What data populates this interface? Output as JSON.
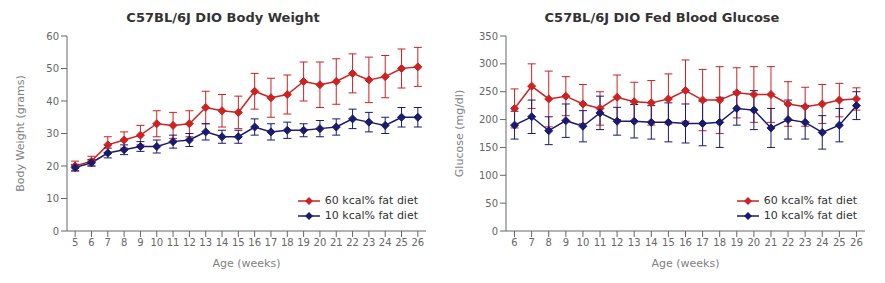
{
  "chart_data": [
    {
      "type": "line",
      "title": "C57BL/6J DIO Body Weight",
      "xlabel": "Age (weeks)",
      "ylabel": "Body Weight (grams)",
      "x": [
        5,
        6,
        7,
        8,
        9,
        10,
        11,
        12,
        13,
        14,
        15,
        16,
        17,
        18,
        19,
        20,
        21,
        22,
        23,
        24,
        25,
        26
      ],
      "series": [
        {
          "name": "60 kcal% fat diet",
          "color": "#cc2222",
          "marker": "diamond",
          "values": [
            20.0,
            21.5,
            26.5,
            28.0,
            29.5,
            33.0,
            32.5,
            33.0,
            38.0,
            37.0,
            36.5,
            43.0,
            41.0,
            42.0,
            46.0,
            45.0,
            46.0,
            48.5,
            46.5,
            47.5,
            50.0,
            50.5
          ],
          "error": [
            1.5,
            1.5,
            2.5,
            2.5,
            3.0,
            4.0,
            4.0,
            4.0,
            5.0,
            5.0,
            5.0,
            5.5,
            6.0,
            6.0,
            6.0,
            7.0,
            7.0,
            6.0,
            7.0,
            6.5,
            6.0,
            6.0
          ]
        },
        {
          "name": "10 kcal% fat diet",
          "color": "#1a1a6e",
          "marker": "diamond",
          "values": [
            19.5,
            21.0,
            24.0,
            25.0,
            26.0,
            26.0,
            27.5,
            28.0,
            30.5,
            29.0,
            29.0,
            32.0,
            30.5,
            31.0,
            31.0,
            31.5,
            32.0,
            34.5,
            33.5,
            32.5,
            35.0,
            35.0
          ],
          "error": [
            1.0,
            1.0,
            1.5,
            1.5,
            1.5,
            2.0,
            2.0,
            2.0,
            2.5,
            2.0,
            2.0,
            2.5,
            2.5,
            2.5,
            2.0,
            2.5,
            2.5,
            3.0,
            3.0,
            2.5,
            3.0,
            3.0
          ]
        }
      ],
      "xlim": [
        4.5,
        26.5
      ],
      "xticks": [
        5,
        6,
        7,
        8,
        9,
        10,
        11,
        12,
        13,
        14,
        15,
        16,
        17,
        18,
        19,
        20,
        21,
        22,
        23,
        24,
        25,
        26
      ],
      "ylim": [
        0,
        60
      ],
      "yticks": [
        0,
        10,
        20,
        30,
        40,
        50,
        60
      ],
      "grid": false,
      "legend": "lower right"
    },
    {
      "type": "line",
      "title": "C57BL/6J DIO Fed Blood Glucose",
      "xlabel": "Age (weeks)",
      "ylabel": "Glucose (mg/dl)",
      "x": [
        6,
        7,
        8,
        9,
        10,
        11,
        12,
        13,
        14,
        15,
        16,
        17,
        18,
        19,
        20,
        21,
        22,
        23,
        24,
        25,
        26
      ],
      "series": [
        {
          "name": "60 kcal% fat diet",
          "color": "#cc2222",
          "marker": "diamond",
          "values": [
            220,
            260,
            237,
            242,
            228,
            220,
            240,
            232,
            230,
            237,
            252,
            235,
            235,
            248,
            245,
            245,
            228,
            223,
            228,
            235,
            237
          ],
          "error": [
            35,
            40,
            50,
            35,
            35,
            30,
            40,
            35,
            40,
            45,
            55,
            55,
            60,
            45,
            50,
            50,
            40,
            35,
            35,
            30,
            20
          ]
        },
        {
          "name": "10 kcal% fat diet",
          "color": "#1a1a6e",
          "marker": "diamond",
          "values": [
            190,
            205,
            180,
            198,
            188,
            212,
            197,
            197,
            195,
            195,
            193,
            193,
            195,
            220,
            217,
            185,
            200,
            195,
            177,
            190,
            225
          ],
          "error": [
            25,
            30,
            25,
            30,
            28,
            30,
            25,
            30,
            30,
            35,
            35,
            40,
            45,
            30,
            35,
            35,
            35,
            30,
            30,
            30,
            25
          ]
        }
      ],
      "xlim": [
        5.5,
        26.5
      ],
      "xticks": [
        6,
        7,
        8,
        9,
        10,
        11,
        12,
        13,
        14,
        15,
        16,
        17,
        18,
        19,
        20,
        21,
        22,
        23,
        24,
        25,
        26
      ],
      "ylim": [
        0,
        350
      ],
      "yticks": [
        0,
        50,
        100,
        150,
        200,
        250,
        300,
        350
      ],
      "grid": false,
      "legend": "lower right"
    }
  ]
}
